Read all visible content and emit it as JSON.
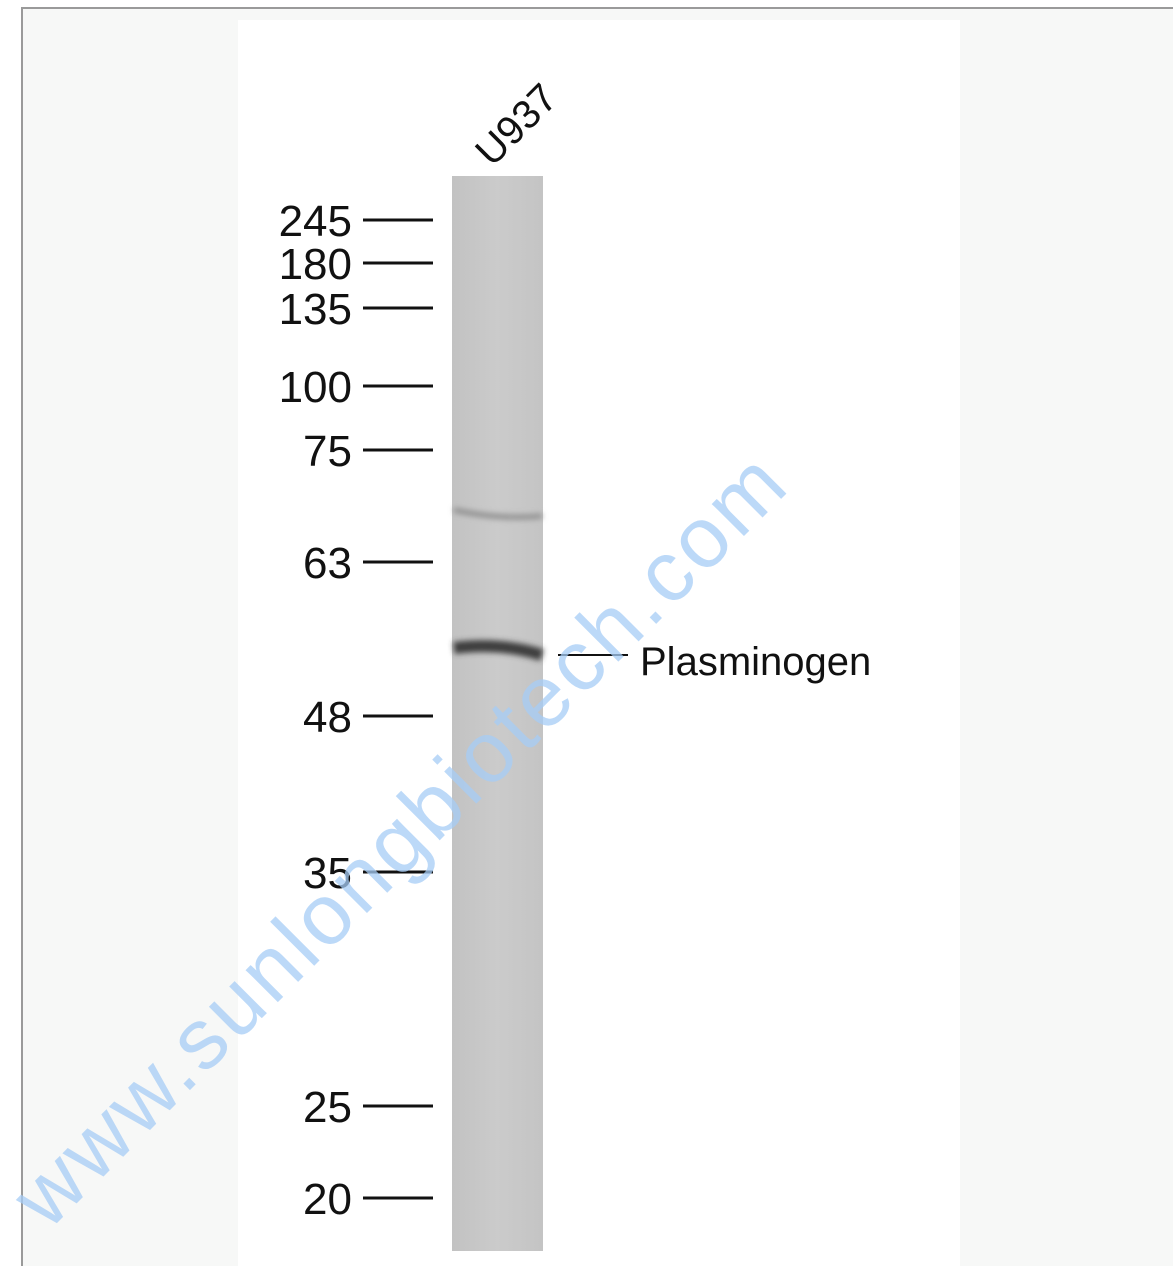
{
  "lane_label": "U937",
  "markers": [
    245,
    180,
    135,
    100,
    75,
    63,
    48,
    35,
    25,
    20
  ],
  "band_label": "Plasminogen",
  "watermark": "www.sunlongbiotech.com"
}
